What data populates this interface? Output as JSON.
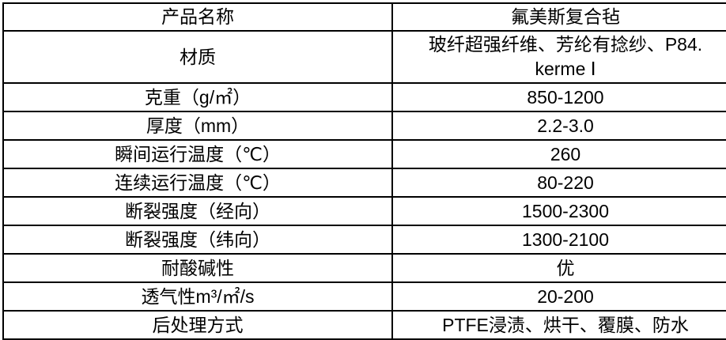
{
  "table": {
    "name": "product-specification-table",
    "border_color": "#000000",
    "background_color": "#ffffff",
    "text_color": "#000000",
    "columns": [
      "parameter",
      "value"
    ],
    "rows": [
      {
        "label": "产品名称",
        "value": "氟美斯复合毡"
      },
      {
        "label": "材质",
        "value": "玻纤超强纤维、芳纶有捻纱、P84.\nkerme Ⅰ"
      },
      {
        "label": "克重（g/㎡）",
        "value": "850-1200"
      },
      {
        "label": "厚度（mm）",
        "value": "2.2-3.0"
      },
      {
        "label": "瞬间运行温度（℃）",
        "value": "260"
      },
      {
        "label": "连续运行温度（℃）",
        "value": "80-220"
      },
      {
        "label": "断裂强度（经向）",
        "value": "1500-2300"
      },
      {
        "label": "断裂强度（纬向）",
        "value": "1300-2100"
      },
      {
        "label": "耐酸碱性",
        "value": "优"
      },
      {
        "label": "透气性m³/㎡/s",
        "value": "20-200"
      },
      {
        "label": "后处理方式",
        "value": "PTFE浸渍、烘干、覆膜、防水"
      }
    ]
  }
}
